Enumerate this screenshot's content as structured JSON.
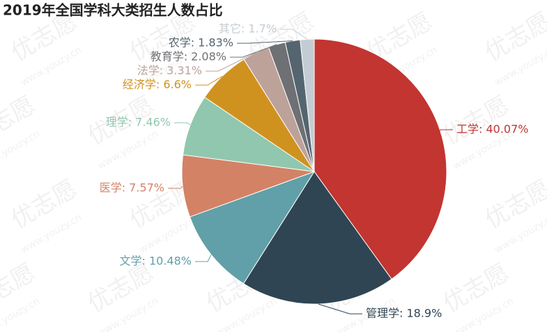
{
  "chart_data": {
    "type": "pie",
    "title": "2019年全国学科大类招生人数占比",
    "watermark": "优志愿",
    "watermark_url": "www.youzy.cn",
    "values": [
      40.07,
      18.9,
      10.48,
      7.57,
      7.46,
      6.6,
      3.31,
      2.08,
      1.83,
      1.7
    ],
    "value_labels": [
      "工学: 40.07%",
      "管理学: 18.9%",
      "文学: 10.48%",
      "医学: 7.57%",
      "理学: 7.46%",
      "经济学: 6.6%",
      "法学: 3.31%",
      "教育学: 2.08%",
      "农学: 1.83%",
      "其它: 1.7%"
    ],
    "colors": [
      "#c23531",
      "#2f4554",
      "#61a0a8",
      "#d48265",
      "#91c7ae",
      "#d0921f",
      "#bda29a",
      "#6e7074",
      "#546570",
      "#c4ccd3"
    ]
  }
}
